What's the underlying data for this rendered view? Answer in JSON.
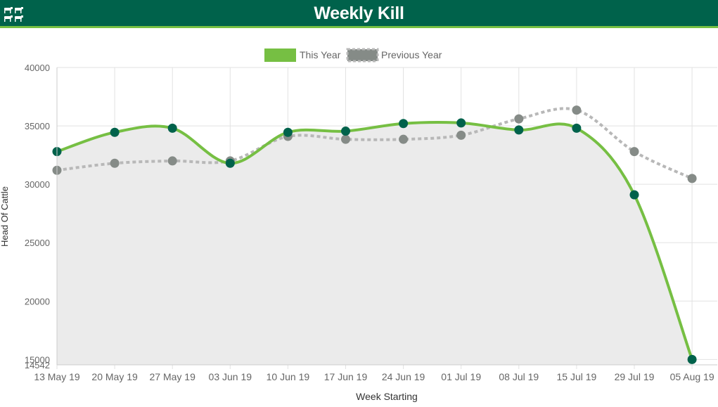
{
  "header": {
    "title": "Weekly Kill",
    "logo_icon": "cattle-icon"
  },
  "colors": {
    "header_bg": "#00624b",
    "header_accent": "#76bf43",
    "this_year_line": "#76bf43",
    "this_year_marker": "#00624b",
    "previous_year_line": "#b8b8b8",
    "previous_year_marker": "#858b87",
    "area_fill": "#ebebeb"
  },
  "chart_data": {
    "type": "line",
    "title": "",
    "xlabel": "Week Starting",
    "ylabel": "Head Of Cattle",
    "categories": [
      "13 May 19",
      "20 May 19",
      "27 May 19",
      "03 Jun 19",
      "10 Jun 19",
      "17 Jun 19",
      "24 Jun 19",
      "01 Jul 19",
      "08 Jul 19",
      "15 Jul 19",
      "29 Jul 19",
      "05 Aug 19"
    ],
    "series": [
      {
        "name": "This Year",
        "style": "solid",
        "values": [
          32800,
          34450,
          34800,
          31800,
          34450,
          34550,
          35200,
          35250,
          34650,
          34800,
          29100,
          15000
        ]
      },
      {
        "name": "Previous Year",
        "style": "dotted",
        "values": [
          31200,
          31800,
          32000,
          32000,
          34100,
          33850,
          33850,
          34200,
          35600,
          36350,
          32800,
          30500
        ]
      }
    ],
    "ylim": [
      14542,
      40000
    ],
    "y_ticks": [
      14542,
      15000,
      20000,
      25000,
      30000,
      35000,
      40000
    ],
    "grid": true,
    "legend": "top-center"
  }
}
